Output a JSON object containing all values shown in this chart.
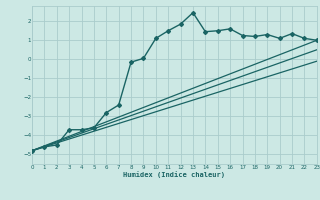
{
  "xlabel": "Humidex (Indice chaleur)",
  "bg_color": "#cce8e4",
  "grid_color": "#aacccc",
  "line_color": "#1a6464",
  "xlim": [
    0,
    23
  ],
  "ylim": [
    -5.5,
    2.8
  ],
  "yticks": [
    -5,
    -4,
    -3,
    -2,
    -1,
    0,
    1,
    2
  ],
  "xticks": [
    0,
    1,
    2,
    3,
    4,
    5,
    6,
    7,
    8,
    9,
    10,
    11,
    12,
    13,
    14,
    15,
    16,
    17,
    18,
    19,
    20,
    21,
    22,
    23
  ],
  "main_x": [
    0,
    1,
    2,
    3,
    4,
    5,
    6,
    7,
    8,
    9,
    10,
    11,
    12,
    13,
    14,
    15,
    16,
    17,
    18,
    19,
    20,
    21,
    22,
    23
  ],
  "main_y": [
    -4.8,
    -4.6,
    -4.5,
    -3.7,
    -3.7,
    -3.6,
    -2.8,
    -2.4,
    -0.15,
    0.05,
    1.1,
    1.5,
    1.85,
    2.45,
    1.45,
    1.5,
    1.6,
    1.25,
    1.2,
    1.3,
    1.1,
    1.35,
    1.1,
    1.0
  ],
  "straight_lines": [
    {
      "x": [
        0,
        23
      ],
      "y": [
        -4.8,
        1.0
      ]
    },
    {
      "x": [
        0,
        23
      ],
      "y": [
        -4.8,
        0.5
      ]
    },
    {
      "x": [
        0,
        23
      ],
      "y": [
        -4.8,
        -0.1
      ]
    }
  ]
}
